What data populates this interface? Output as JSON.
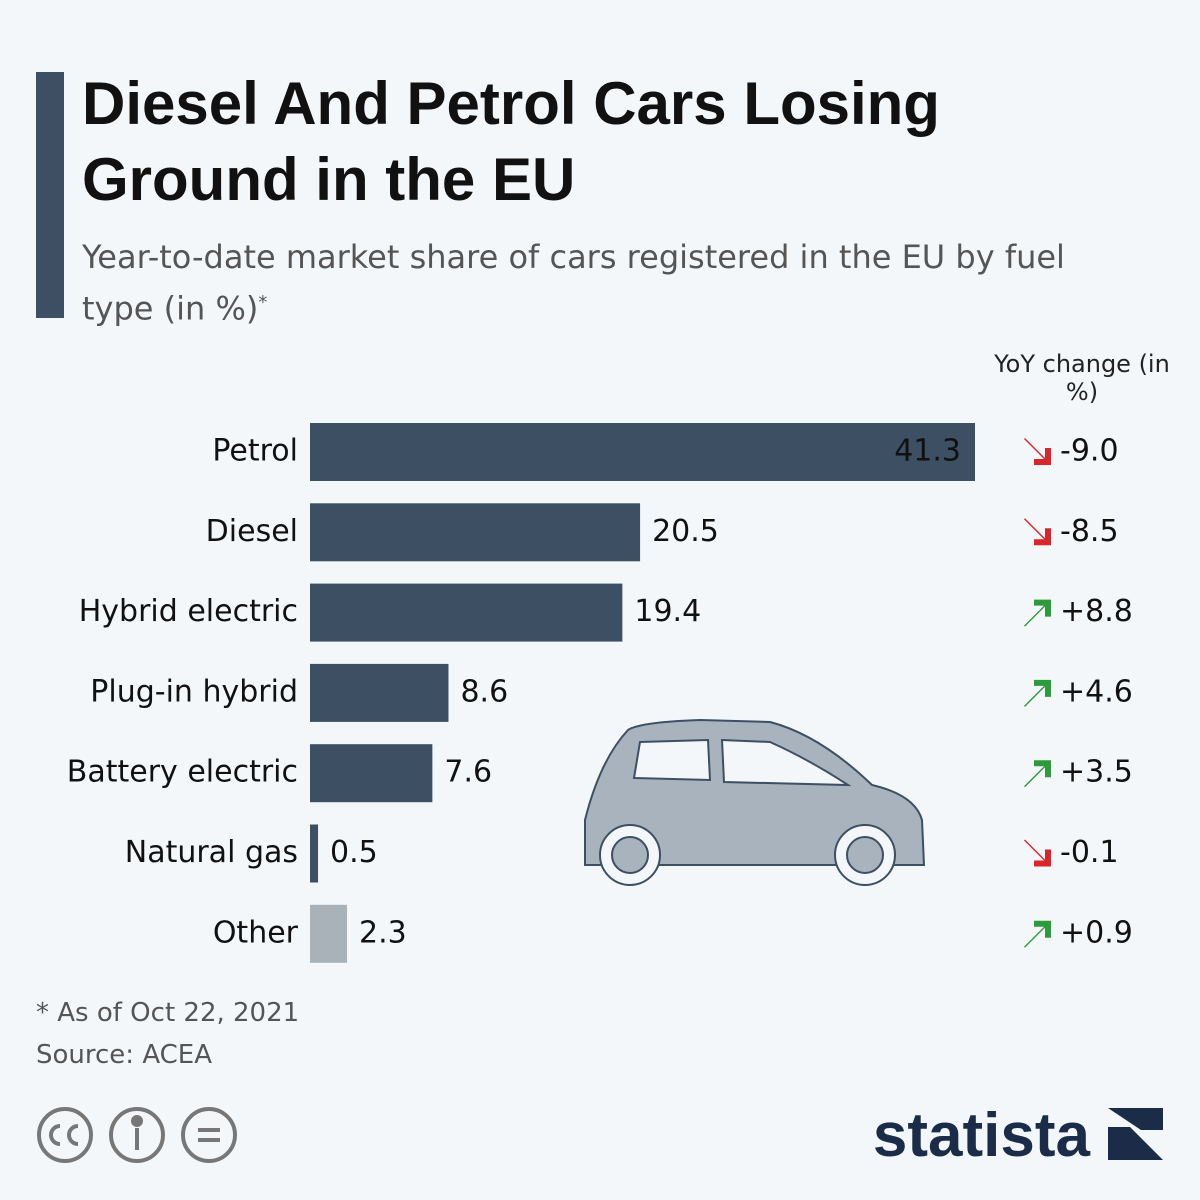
{
  "chart_data": {
    "type": "bar",
    "title": "Diesel And Petrol Cars Losing Ground in the EU",
    "subtitle": "Year-to-date market share of cars registered in the EU by fuel type (in %)",
    "subtitle_mark": "*",
    "categories": [
      "Petrol",
      "Diesel",
      "Hybrid electric",
      "Plug-in hybrid",
      "Battery electric",
      "Natural gas",
      "Other"
    ],
    "values": [
      41.3,
      20.5,
      19.4,
      8.6,
      7.6,
      0.5,
      2.3
    ],
    "colors": [
      "#3d4f63",
      "#3d4f63",
      "#3d4f63",
      "#3d4f63",
      "#3d4f63",
      "#3d4f63",
      "#a9b1b9"
    ],
    "yoy_change": {
      "title": "YoY change (in %)",
      "values": [
        -9.0,
        -8.5,
        8.8,
        4.6,
        3.5,
        -0.1,
        0.9
      ],
      "value_labels": [
        "-9.0",
        "-8.5",
        "+8.8",
        "+4.6",
        "+3.5",
        "-0.1",
        "+0.9"
      ],
      "up_color": "#2e9a3c",
      "down_color": "#d7262c"
    },
    "footnote": "* As of Oct 22, 2021",
    "source": "Source: ACEA",
    "brand": "statista"
  }
}
